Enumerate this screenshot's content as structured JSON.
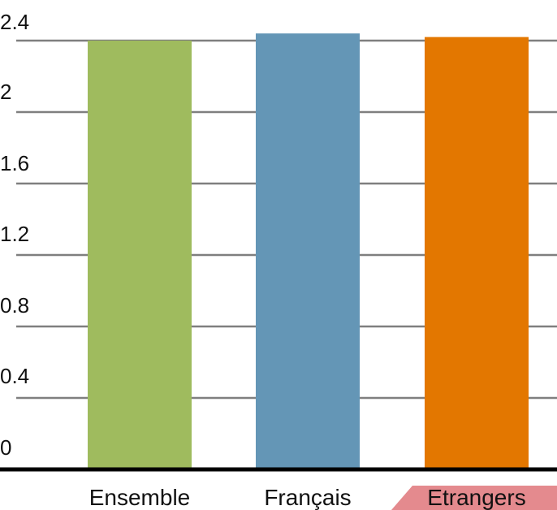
{
  "chart_data": {
    "type": "bar",
    "categories": [
      "Ensemble",
      "Français",
      "Etrangers"
    ],
    "values": [
      2.4,
      2.44,
      2.42
    ],
    "colors": [
      "#9fbb5e",
      "#6496b6",
      "#e37700"
    ],
    "yticks": [
      "0",
      "0.4",
      "0.8",
      "1.2",
      "1.6",
      "2",
      "2.4"
    ],
    "ylim": [
      0,
      2.4
    ],
    "grid": true,
    "legend": "none",
    "axis_color": "#000000",
    "grid_color": "#7f7f7f",
    "annotation_color": "#e48a8e"
  }
}
